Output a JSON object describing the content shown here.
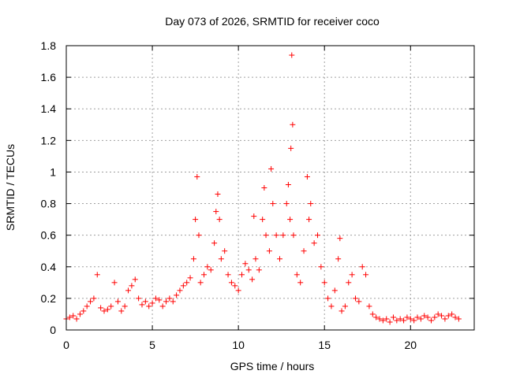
{
  "chart_data": {
    "type": "scatter",
    "title": "Day 073 of 2026, SRMTID for receiver coco",
    "xlabel": "GPS time / hours",
    "ylabel": "SRMTID / TECUs",
    "xlim": [
      0,
      23.7
    ],
    "ylim": [
      0,
      1.8
    ],
    "xticks": [
      0,
      5,
      10,
      15,
      20
    ],
    "yticks": [
      0,
      0.2,
      0.4,
      0.6,
      0.8,
      1,
      1.2,
      1.4,
      1.6,
      1.8
    ],
    "ytick_labels": [
      "0",
      "0.2",
      "0.4",
      "0.6",
      "0.8",
      "1",
      "1.2",
      "1.4",
      "1.6",
      "1.8"
    ],
    "grid": true,
    "marker": "+",
    "color": "#ff0000",
    "series": [
      {
        "name": "SRMTID",
        "x": [
          0.0,
          0.2,
          0.4,
          0.6,
          0.8,
          1.0,
          1.2,
          1.4,
          1.6,
          1.8,
          2.0,
          2.2,
          2.4,
          2.6,
          2.8,
          3.0,
          3.2,
          3.4,
          3.6,
          3.8,
          4.0,
          4.2,
          4.4,
          4.6,
          4.8,
          5.0,
          5.2,
          5.4,
          5.6,
          5.8,
          6.0,
          6.2,
          6.4,
          6.6,
          6.8,
          7.0,
          7.2,
          7.4,
          7.5,
          7.6,
          7.7,
          7.8,
          8.0,
          8.2,
          8.4,
          8.6,
          8.7,
          8.8,
          8.9,
          9.0,
          9.2,
          9.4,
          9.6,
          9.8,
          10.0,
          10.2,
          10.4,
          10.6,
          10.8,
          10.9,
          11.0,
          11.2,
          11.4,
          11.5,
          11.6,
          11.8,
          11.9,
          12.0,
          12.2,
          12.4,
          12.6,
          12.8,
          12.9,
          13.0,
          13.05,
          13.1,
          13.15,
          13.2,
          13.4,
          13.6,
          13.8,
          14.0,
          14.1,
          14.2,
          14.4,
          14.6,
          14.8,
          15.0,
          15.2,
          15.4,
          15.6,
          15.8,
          15.9,
          16.0,
          16.2,
          16.4,
          16.6,
          16.8,
          17.0,
          17.2,
          17.4,
          17.6,
          17.8,
          18.0,
          18.2,
          18.4,
          18.6,
          18.8,
          19.0,
          19.2,
          19.4,
          19.6,
          19.8,
          20.0,
          20.2,
          20.4,
          20.6,
          20.8,
          21.0,
          21.2,
          21.4,
          21.6,
          21.8,
          22.0,
          22.2,
          22.4,
          22.6,
          22.8
        ],
        "y": [
          0.07,
          0.08,
          0.09,
          0.07,
          0.1,
          0.12,
          0.15,
          0.18,
          0.2,
          0.35,
          0.14,
          0.12,
          0.13,
          0.15,
          0.3,
          0.18,
          0.12,
          0.15,
          0.25,
          0.28,
          0.32,
          0.2,
          0.16,
          0.18,
          0.15,
          0.17,
          0.2,
          0.19,
          0.15,
          0.18,
          0.2,
          0.18,
          0.22,
          0.25,
          0.28,
          0.3,
          0.33,
          0.45,
          0.7,
          0.97,
          0.6,
          0.3,
          0.35,
          0.4,
          0.38,
          0.55,
          0.75,
          0.86,
          0.7,
          0.45,
          0.5,
          0.35,
          0.3,
          0.28,
          0.25,
          0.35,
          0.42,
          0.38,
          0.32,
          0.72,
          0.45,
          0.38,
          0.7,
          0.9,
          0.6,
          0.5,
          1.02,
          0.8,
          0.6,
          0.45,
          0.6,
          0.8,
          0.92,
          0.7,
          1.15,
          1.74,
          1.3,
          0.6,
          0.35,
          0.3,
          0.5,
          0.97,
          0.7,
          0.8,
          0.55,
          0.6,
          0.4,
          0.3,
          0.2,
          0.15,
          0.25,
          0.45,
          0.58,
          0.12,
          0.15,
          0.3,
          0.35,
          0.2,
          0.18,
          0.4,
          0.35,
          0.15,
          0.1,
          0.08,
          0.07,
          0.06,
          0.07,
          0.05,
          0.08,
          0.06,
          0.07,
          0.06,
          0.08,
          0.07,
          0.06,
          0.08,
          0.07,
          0.09,
          0.08,
          0.06,
          0.08,
          0.1,
          0.09,
          0.07,
          0.09,
          0.1,
          0.08,
          0.07
        ]
      }
    ]
  }
}
